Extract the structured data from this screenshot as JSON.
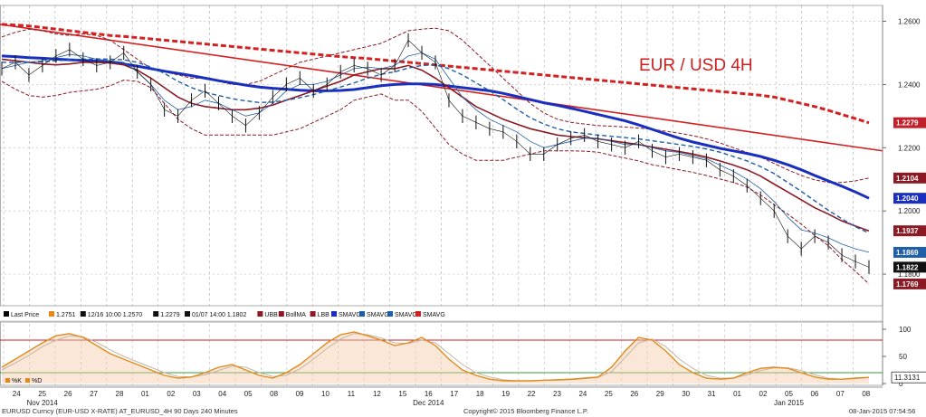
{
  "chart_data": [
    {
      "type": "line",
      "title": "EUR / USD 4H",
      "x_labels": [
        {
          "label": "24",
          "row": "day"
        },
        {
          "label": "25",
          "row": "day"
        },
        {
          "label": "26",
          "row": "day"
        },
        {
          "label": "27",
          "row": "day"
        },
        {
          "label": "28",
          "row": "day"
        },
        {
          "label": "01",
          "row": "day"
        },
        {
          "label": "02",
          "row": "day"
        },
        {
          "label": "03",
          "row": "day"
        },
        {
          "label": "04",
          "row": "day"
        },
        {
          "label": "05",
          "row": "day"
        },
        {
          "label": "08",
          "row": "day"
        },
        {
          "label": "09",
          "row": "day"
        },
        {
          "label": "10",
          "row": "day"
        },
        {
          "label": "11",
          "row": "day"
        },
        {
          "label": "12",
          "row": "day"
        },
        {
          "label": "15",
          "row": "day"
        },
        {
          "label": "16",
          "row": "day"
        },
        {
          "label": "17",
          "row": "day"
        },
        {
          "label": "18",
          "row": "day"
        },
        {
          "label": "19",
          "row": "day"
        },
        {
          "label": "22",
          "row": "day"
        },
        {
          "label": "23",
          "row": "day"
        },
        {
          "label": "24",
          "row": "day"
        },
        {
          "label": "25",
          "row": "day"
        },
        {
          "label": "26",
          "row": "day"
        },
        {
          "label": "29",
          "row": "day"
        },
        {
          "label": "30",
          "row": "day"
        },
        {
          "label": "31",
          "row": "day"
        },
        {
          "label": "01",
          "row": "day"
        },
        {
          "label": "02",
          "row": "day"
        },
        {
          "label": "05",
          "row": "day"
        },
        {
          "label": "06",
          "row": "day"
        },
        {
          "label": "07",
          "row": "day"
        },
        {
          "label": "08",
          "row": "day"
        }
      ],
      "month_labels": [
        "Nov 2014",
        "Dec 2014",
        "Jan 2015"
      ],
      "y_ticks": [
        "1.2600",
        "1.2400",
        "1.2200",
        "1.2000",
        "1.1800"
      ],
      "ylim": [
        1.17,
        1.265
      ],
      "last_price_label": "1.1822",
      "price_tags": [
        {
          "value": 1.2279,
          "label": "1.2279",
          "color": "#c0202a"
        },
        {
          "value": 1.2104,
          "label": "1.2104",
          "color": "#8b1a24"
        },
        {
          "value": 1.204,
          "label": "1.2040",
          "color": "#1a2fbf"
        },
        {
          "value": 1.1937,
          "label": "1.1937",
          "color": "#8b1a24"
        },
        {
          "value": 1.1869,
          "label": "1.1869",
          "color": "#1f5fa8"
        },
        {
          "value": 1.1822,
          "label": "1.1822",
          "color": "#111111"
        },
        {
          "value": 1.1769,
          "label": "1.1769",
          "color": "#8b1a24"
        }
      ],
      "series": [
        {
          "key": "price",
          "color": "#111111",
          "values": [
            1.245,
            1.247,
            1.243,
            1.246,
            1.249,
            1.251,
            1.248,
            1.246,
            1.247,
            1.25,
            1.244,
            1.24,
            1.232,
            1.23,
            1.235,
            1.238,
            1.234,
            1.23,
            1.227,
            1.231,
            1.236,
            1.24,
            1.242,
            1.238,
            1.24,
            1.244,
            1.246,
            1.245,
            1.243,
            1.246,
            1.254,
            1.25,
            1.247,
            1.235,
            1.23,
            1.228,
            1.226,
            1.225,
            1.222,
            1.218,
            1.218,
            1.221,
            1.223,
            1.224,
            1.222,
            1.221,
            1.22,
            1.222,
            1.219,
            1.217,
            1.218,
            1.217,
            1.216,
            1.213,
            1.211,
            1.208,
            1.204,
            1.2,
            1.192,
            1.188,
            1.192,
            1.19,
            1.186,
            1.184,
            1.1822
          ]
        },
        {
          "key": "sma_fast",
          "color": "#1f5fa8",
          "values": [
            1.245,
            1.246,
            1.247,
            1.2475,
            1.2485,
            1.2495,
            1.249,
            1.248,
            1.2475,
            1.247,
            1.244,
            1.24,
            1.235,
            1.232,
            1.233,
            1.235,
            1.234,
            1.232,
            1.23,
            1.231,
            1.234,
            1.238,
            1.24,
            1.24,
            1.241,
            1.243,
            1.245,
            1.2455,
            1.245,
            1.246,
            1.249,
            1.25,
            1.248,
            1.242,
            1.236,
            1.232,
            1.229,
            1.227,
            1.225,
            1.222,
            1.22,
            1.221,
            1.222,
            1.223,
            1.223,
            1.222,
            1.221,
            1.221,
            1.22,
            1.219,
            1.2185,
            1.2175,
            1.2165,
            1.2145,
            1.2125,
            1.21,
            1.207,
            1.203,
            1.198,
            1.194,
            1.193,
            1.1915,
            1.1895,
            1.188,
            1.1869
          ]
        },
        {
          "key": "bollma",
          "color": "#8b1a24",
          "values": [
            1.248,
            1.2475,
            1.247,
            1.2465,
            1.2462,
            1.2465,
            1.247,
            1.247,
            1.2468,
            1.2462,
            1.2445,
            1.242,
            1.239,
            1.236,
            1.234,
            1.233,
            1.2325,
            1.232,
            1.232,
            1.2325,
            1.2335,
            1.235,
            1.2365,
            1.238,
            1.2395,
            1.241,
            1.243,
            1.244,
            1.245,
            1.245,
            1.246,
            1.2445,
            1.242,
            1.239,
            1.236,
            1.233,
            1.231,
            1.229,
            1.2275,
            1.226,
            1.225,
            1.224,
            1.2235,
            1.2232,
            1.2228,
            1.2222,
            1.2216,
            1.221,
            1.2202,
            1.2195,
            1.2188,
            1.218,
            1.217,
            1.2158,
            1.2145,
            1.213,
            1.211,
            1.2085,
            1.206,
            1.2035,
            1.201,
            1.199,
            1.1968,
            1.1952,
            1.1937
          ]
        },
        {
          "key": "sma_slow",
          "color": "#1a2fbf",
          "values": [
            1.249,
            1.2488,
            1.2485,
            1.2483,
            1.248,
            1.2478,
            1.2476,
            1.2474,
            1.247,
            1.2465,
            1.2458,
            1.245,
            1.2442,
            1.2435,
            1.2428,
            1.242,
            1.2412,
            1.2405,
            1.2398,
            1.2392,
            1.2388,
            1.2385,
            1.2382,
            1.238,
            1.238,
            1.2381,
            1.2384,
            1.239,
            1.2396,
            1.24,
            1.2402,
            1.2402,
            1.24,
            1.2395,
            1.239,
            1.2385,
            1.238,
            1.2372,
            1.2362,
            1.2352,
            1.2342,
            1.2334,
            1.2325,
            1.2315,
            1.2305,
            1.2295,
            1.2285,
            1.2272,
            1.2258,
            1.2244,
            1.223,
            1.2218,
            1.2208,
            1.2198,
            1.219,
            1.2182,
            1.2172,
            1.216,
            1.2146,
            1.213,
            1.2112,
            1.2095,
            1.2078,
            1.206,
            1.204
          ]
        },
        {
          "key": "bb_upper",
          "color": "#8b1a24",
          "values": [
            1.255,
            1.2565,
            1.2575,
            1.257,
            1.256,
            1.2555,
            1.256,
            1.2555,
            1.254,
            1.251,
            1.248,
            1.245,
            1.244,
            1.243,
            1.242,
            1.242,
            1.241,
            1.24,
            1.24,
            1.241,
            1.243,
            1.245,
            1.247,
            1.248,
            1.249,
            1.25,
            1.251,
            1.252,
            1.253,
            1.255,
            1.257,
            1.2575,
            1.2578,
            1.257,
            1.254,
            1.25,
            1.246,
            1.242,
            1.238,
            1.234,
            1.231,
            1.229,
            1.228,
            1.2275,
            1.227,
            1.2268,
            1.2265,
            1.2262,
            1.2258,
            1.2252,
            1.2246,
            1.2238,
            1.2228,
            1.2215,
            1.22,
            1.2185,
            1.217,
            1.215,
            1.213,
            1.2112,
            1.2098,
            1.209,
            1.209,
            1.2095,
            1.2104
          ]
        },
        {
          "key": "bb_lower",
          "color": "#8b1a24",
          "values": [
            1.241,
            1.2385,
            1.2365,
            1.236,
            1.2365,
            1.2375,
            1.238,
            1.2385,
            1.2396,
            1.2414,
            1.241,
            1.239,
            1.234,
            1.229,
            1.226,
            1.224,
            1.224,
            1.224,
            1.224,
            1.224,
            1.224,
            1.225,
            1.226,
            1.228,
            1.23,
            1.232,
            1.235,
            1.236,
            1.237,
            1.235,
            1.235,
            1.2315,
            1.2262,
            1.221,
            1.218,
            1.216,
            1.216,
            1.216,
            1.217,
            1.218,
            1.219,
            1.219,
            1.219,
            1.2189,
            1.2186,
            1.2176,
            1.2167,
            1.2158,
            1.2146,
            1.2138,
            1.213,
            1.2122,
            1.2112,
            1.2101,
            1.209,
            1.2075,
            1.205,
            1.202,
            1.199,
            1.1958,
            1.1922,
            1.189,
            1.1846,
            1.1809,
            1.1769
          ]
        },
        {
          "key": "sma_mid",
          "color": "#1f5fa8",
          "values": [
            1.247,
            1.247,
            1.2471,
            1.2472,
            1.2475,
            1.2478,
            1.248,
            1.2481,
            1.248,
            1.2478,
            1.247,
            1.2455,
            1.2435,
            1.241,
            1.239,
            1.2375,
            1.2365,
            1.2355,
            1.2348,
            1.2343,
            1.2344,
            1.235,
            1.2358,
            1.2368,
            1.238,
            1.2392,
            1.2405,
            1.242,
            1.2432,
            1.244,
            1.2452,
            1.246,
            1.2462,
            1.245,
            1.243,
            1.2405,
            1.238,
            1.2352,
            1.2322,
            1.2295,
            1.2275,
            1.226,
            1.225,
            1.2245,
            1.224,
            1.2236,
            1.2232,
            1.2228,
            1.2222,
            1.2216,
            1.221,
            1.2204,
            1.2196,
            1.2186,
            1.2172,
            1.2158,
            1.214,
            1.2118,
            1.209,
            1.2062,
            1.2032,
            1.2002,
            1.1975,
            1.195,
            1.193
          ]
        },
        {
          "key": "sma_200",
          "color": "#d42020",
          "values": [
            1.259,
            1.2588,
            1.2585,
            1.258,
            1.2575,
            1.257,
            1.2565,
            1.256,
            1.2555,
            1.2552,
            1.2548,
            1.2544,
            1.254,
            1.2536,
            1.2532,
            1.2528,
            1.2524,
            1.252,
            1.2516,
            1.2512,
            1.2508,
            1.2504,
            1.25,
            1.2496,
            1.2492,
            1.2488,
            1.2485,
            1.2482,
            1.2478,
            1.2474,
            1.247,
            1.2466,
            1.2462,
            1.2458,
            1.2454,
            1.245,
            1.2446,
            1.2442,
            1.2438,
            1.2434,
            1.243,
            1.2426,
            1.2422,
            1.2418,
            1.2414,
            1.241,
            1.2406,
            1.2402,
            1.2398,
            1.2394,
            1.239,
            1.2386,
            1.2382,
            1.2378,
            1.2374,
            1.237,
            1.2366,
            1.236,
            1.235,
            1.234,
            1.233,
            1.2318,
            1.2305,
            1.2292,
            1.2279
          ]
        }
      ],
      "trendline": {
        "color": "#d42020",
        "start": 1.259,
        "end": 1.219
      },
      "legend": [
        {
          "label": "Last Price",
          "color": "#000000"
        },
        {
          "label": "1.2751",
          "color": "#e08a1e"
        },
        {
          "label": "12/16 10:00 1.2570",
          "color": "#111111"
        },
        {
          "label": "1.2279",
          "color": "#111111"
        },
        {
          "label": "01/07 14:00 1.1802",
          "color": "#111111"
        },
        {
          "label": "UBB",
          "color": "#8b1a24"
        },
        {
          "label": "BollMA",
          "color": "#8b1a24"
        },
        {
          "label": "LBB",
          "color": "#8b1a24"
        },
        {
          "label": "SMAVG",
          "color": "#1a2fbf"
        },
        {
          "label": "SMAVG",
          "color": "#1f5fa8"
        },
        {
          "label": "SMAVG",
          "color": "#1f5fa8"
        },
        {
          "label": "SMAVG",
          "color": "#d42020"
        }
      ]
    },
    {
      "type": "line",
      "y_ticks": [
        "100",
        "50",
        "0"
      ],
      "ylim": [
        0,
        100
      ],
      "levels": [
        80,
        20
      ],
      "last_value_label": "11.3131",
      "legend": [
        {
          "label": "%K",
          "color": "#e08a1e"
        },
        {
          "label": "%D",
          "color": "#e08a1e"
        }
      ],
      "series": [
        {
          "key": "stoch_k",
          "color": "#e08a1e",
          "values": [
            30,
            45,
            60,
            75,
            88,
            92,
            85,
            70,
            55,
            45,
            35,
            25,
            15,
            10,
            12,
            20,
            30,
            35,
            25,
            15,
            10,
            20,
            35,
            55,
            75,
            90,
            95,
            88,
            80,
            70,
            75,
            85,
            70,
            45,
            25,
            15,
            8,
            5,
            5,
            5,
            6,
            7,
            8,
            10,
            12,
            30,
            60,
            85,
            80,
            60,
            35,
            20,
            10,
            8,
            10,
            20,
            28,
            30,
            28,
            20,
            12,
            8,
            8,
            10,
            11.3
          ]
        },
        {
          "key": "stoch_d",
          "color": "#c7b4a0",
          "values": [
            25,
            38,
            52,
            68,
            80,
            88,
            86,
            76,
            62,
            50,
            40,
            30,
            20,
            13,
            12,
            16,
            24,
            32,
            30,
            20,
            13,
            15,
            27,
            45,
            65,
            82,
            92,
            90,
            84,
            75,
            74,
            80,
            75,
            55,
            35,
            20,
            12,
            7,
            5,
            5,
            6,
            6,
            7,
            9,
            11,
            22,
            48,
            75,
            82,
            68,
            45,
            28,
            15,
            10,
            10,
            16,
            24,
            29,
            29,
            24,
            16,
            10,
            8,
            9,
            11
          ]
        }
      ]
    }
  ],
  "footer": {
    "left": "EURUSD Curncy (EUR-USD X-RATE) AT_EURUSD_4H 90 Days 240 Minutes",
    "center": "Copyright© 2015 Bloomberg Finance L.P.",
    "right": "08-Jan-2015 07:54:56"
  }
}
